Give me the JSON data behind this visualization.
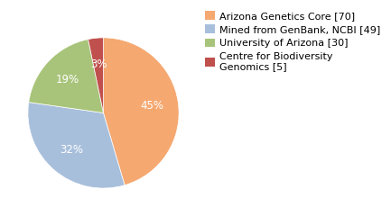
{
  "labels": [
    "Arizona Genetics Core [70]",
    "Mined from GenBank, NCBI [49]",
    "University of Arizona [30]",
    "Centre for Biodiversity\nGenomics [5]"
  ],
  "values": [
    70,
    49,
    30,
    5
  ],
  "colors": [
    "#F5A870",
    "#A8BFDC",
    "#A8C47A",
    "#C0504D"
  ],
  "background_color": "#ffffff",
  "autopct_fontsize": 8.5,
  "legend_fontsize": 8.0
}
